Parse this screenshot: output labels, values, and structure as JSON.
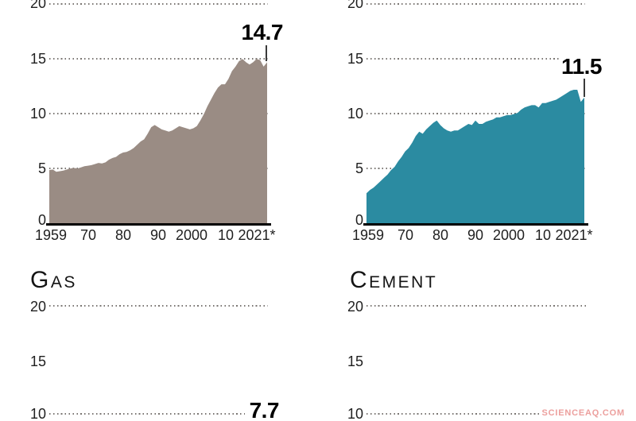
{
  "watermark": {
    "text": "SCIENCEAQ.COM",
    "color": "#ec9f9d"
  },
  "colors": {
    "background": "#ffffff",
    "axis": "#000000",
    "grid_dots": "#4a423c",
    "tick_text": "#1f1f1f",
    "chart1_fill": "#9a8c84",
    "chart2_fill": "#2b8ba1"
  },
  "chart_data": [
    {
      "id": "top-left",
      "type": "area",
      "title": "",
      "fill_color": "#9a8c84",
      "ylim": [
        0,
        20
      ],
      "xlim": [
        1959,
        2021
      ],
      "grid": "dotted-horizontal",
      "y_tick_labels": [
        "0",
        "5",
        "10",
        "15",
        "20"
      ],
      "x_tick_labels": [
        "1959",
        "70",
        "80",
        "90",
        "2000",
        "10",
        "2021*"
      ],
      "end_value_label": "14.7",
      "x_start_year": 1959,
      "values": [
        4.9,
        4.95,
        4.75,
        4.8,
        4.85,
        4.95,
        5.05,
        5.1,
        5.05,
        5.15,
        5.25,
        5.3,
        5.35,
        5.45,
        5.55,
        5.5,
        5.6,
        5.85,
        6.0,
        6.1,
        6.35,
        6.5,
        6.55,
        6.7,
        6.9,
        7.2,
        7.5,
        7.7,
        8.2,
        8.8,
        9.0,
        8.8,
        8.6,
        8.5,
        8.4,
        8.5,
        8.7,
        8.9,
        8.8,
        8.7,
        8.6,
        8.7,
        8.9,
        9.4,
        10.0,
        10.7,
        11.3,
        11.9,
        12.4,
        12.7,
        12.7,
        13.2,
        13.9,
        14.3,
        14.8,
        15.0,
        14.7,
        14.5,
        14.7,
        15.0,
        14.9,
        14.3,
        14.7
      ]
    },
    {
      "id": "top-right",
      "type": "area",
      "title": "",
      "fill_color": "#2b8ba1",
      "ylim": [
        0,
        20
      ],
      "xlim": [
        1959,
        2021
      ],
      "grid": "dotted-horizontal",
      "y_tick_labels": [
        "0",
        "5",
        "10",
        "15",
        "20"
      ],
      "x_tick_labels": [
        "1959",
        "70",
        "80",
        "90",
        "2000",
        "10",
        "2021*"
      ],
      "end_value_label": "11.5",
      "x_start_year": 1959,
      "values": [
        2.8,
        3.1,
        3.3,
        3.6,
        3.9,
        4.2,
        4.5,
        4.9,
        5.2,
        5.7,
        6.1,
        6.6,
        6.9,
        7.4,
        8.0,
        8.4,
        8.2,
        8.6,
        8.9,
        9.2,
        9.4,
        9.0,
        8.7,
        8.5,
        8.4,
        8.5,
        8.5,
        8.7,
        8.9,
        9.1,
        9.0,
        9.4,
        9.1,
        9.1,
        9.3,
        9.4,
        9.5,
        9.7,
        9.7,
        9.8,
        9.9,
        9.9,
        10.0,
        10.1,
        10.4,
        10.6,
        10.7,
        10.8,
        10.8,
        10.6,
        11.0,
        11.0,
        11.1,
        11.2,
        11.3,
        11.5,
        11.7,
        11.9,
        12.1,
        12.2,
        12.2,
        11.1,
        11.5
      ]
    },
    {
      "id": "gas",
      "type": "area",
      "title": "Gas",
      "ylim": [
        0,
        20
      ],
      "grid": "dotted-horizontal",
      "y_tick_labels_visible": [
        "20",
        "15",
        "10"
      ],
      "grid_values_visible": [
        20,
        10
      ],
      "end_value_label": "7.7",
      "series_visible": false
    },
    {
      "id": "cement",
      "type": "area",
      "title": "Cement",
      "ylim": [
        0,
        20
      ],
      "grid": "dotted-horizontal",
      "y_tick_labels_visible": [
        "20",
        "15",
        "10"
      ],
      "grid_values_visible": [
        20,
        10
      ],
      "end_value_label": "",
      "series_visible": false
    }
  ]
}
